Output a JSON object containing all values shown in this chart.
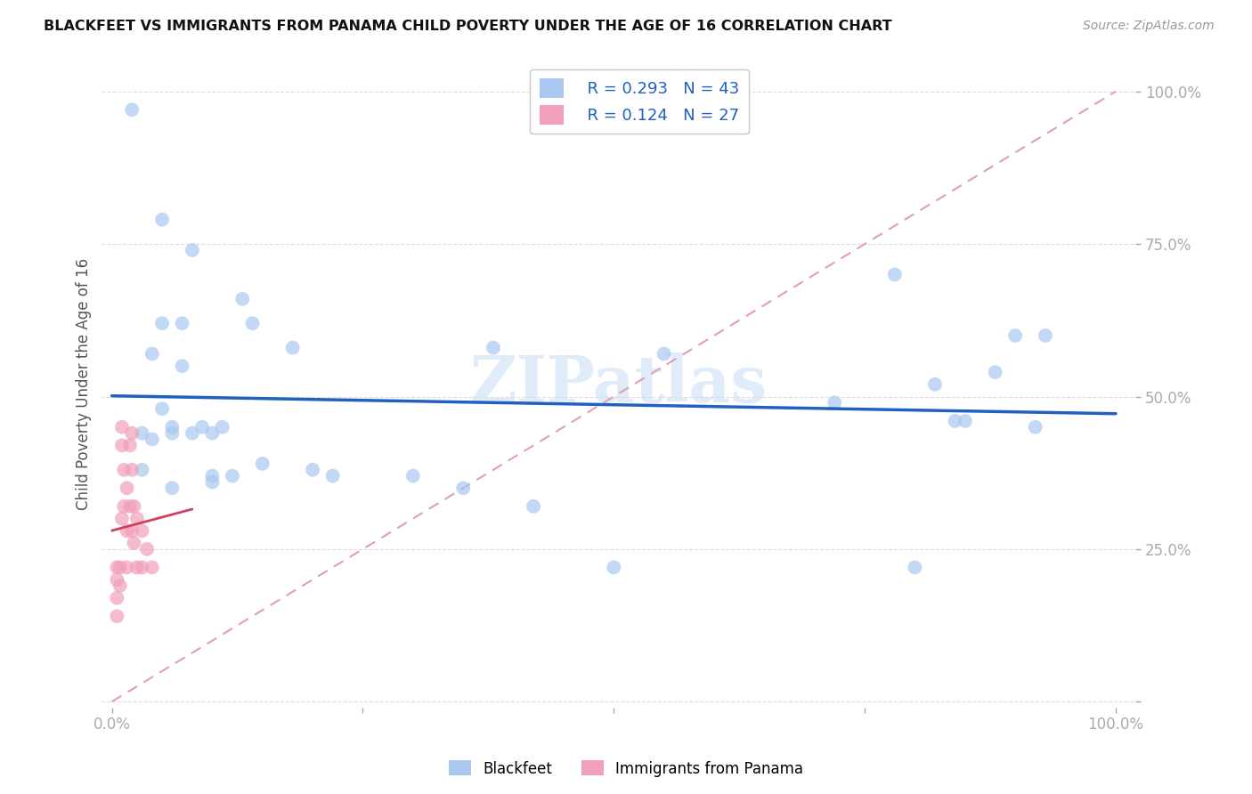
{
  "title": "BLACKFEET VS IMMIGRANTS FROM PANAMA CHILD POVERTY UNDER THE AGE OF 16 CORRELATION CHART",
  "source": "Source: ZipAtlas.com",
  "ylabel": "Child Poverty Under the Age of 16",
  "blue_color": "#a8c8f0",
  "pink_color": "#f0a0b8",
  "line_blue_color": "#2060c0",
  "line_pink_color": "#d04060",
  "diag_color": "#e0a0b0",
  "watermark": "ZIPatlas",
  "R_blue": 0.293,
  "N_blue": 43,
  "R_pink": 0.124,
  "N_pink": 27,
  "blue_x": [
    0.02,
    0.03,
    0.04,
    0.04,
    0.05,
    0.05,
    0.05,
    0.06,
    0.06,
    0.07,
    0.07,
    0.08,
    0.08,
    0.09,
    0.1,
    0.1,
    0.11,
    0.12,
    0.13,
    0.14,
    0.15,
    0.18,
    0.2,
    0.22,
    0.3,
    0.35,
    0.38,
    0.42,
    0.5,
    0.55,
    0.72,
    0.78,
    0.8,
    0.82,
    0.84,
    0.85,
    0.88,
    0.9,
    0.92,
    0.93,
    0.03,
    0.06,
    0.1
  ],
  "blue_y": [
    0.97,
    0.44,
    0.57,
    0.43,
    0.79,
    0.62,
    0.48,
    0.45,
    0.35,
    0.62,
    0.55,
    0.74,
    0.44,
    0.45,
    0.44,
    0.36,
    0.45,
    0.37,
    0.66,
    0.62,
    0.39,
    0.58,
    0.38,
    0.37,
    0.37,
    0.35,
    0.58,
    0.32,
    0.22,
    0.57,
    0.49,
    0.7,
    0.22,
    0.52,
    0.46,
    0.46,
    0.54,
    0.6,
    0.45,
    0.6,
    0.38,
    0.44,
    0.37
  ],
  "pink_x": [
    0.005,
    0.005,
    0.005,
    0.005,
    0.008,
    0.008,
    0.01,
    0.01,
    0.01,
    0.012,
    0.012,
    0.015,
    0.015,
    0.015,
    0.018,
    0.018,
    0.02,
    0.02,
    0.02,
    0.022,
    0.022,
    0.025,
    0.025,
    0.03,
    0.03,
    0.035,
    0.04
  ],
  "pink_y": [
    0.22,
    0.2,
    0.17,
    0.14,
    0.22,
    0.19,
    0.45,
    0.42,
    0.3,
    0.38,
    0.32,
    0.35,
    0.28,
    0.22,
    0.42,
    0.32,
    0.44,
    0.38,
    0.28,
    0.32,
    0.26,
    0.3,
    0.22,
    0.28,
    0.22,
    0.25,
    0.22
  ]
}
